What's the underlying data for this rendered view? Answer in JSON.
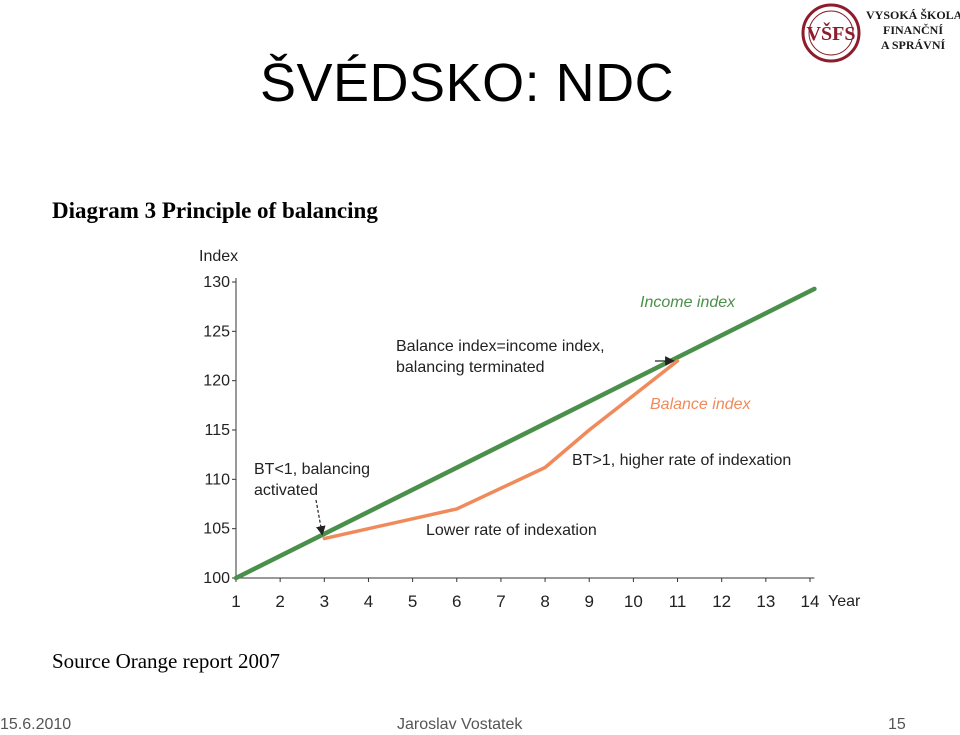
{
  "slide": {
    "title": "ŠVÉDSKO: NDC",
    "logo": {
      "lines": [
        "VYSOKÁ ŠKOLA",
        "FINANČNÍ",
        "A SPRÁVNÍ"
      ],
      "brand_color": "#8b1d2c"
    },
    "source": "Source Orange report 2007",
    "footer": {
      "date": "15.6.2010",
      "author": "Jaroslav Vostatek",
      "page": "15"
    }
  },
  "chart_data": {
    "type": "line",
    "title": "Diagram 3 Principle of balancing",
    "ylabel": "Index",
    "xlabel": "Year",
    "x": [
      1,
      2,
      3,
      4,
      5,
      6,
      7,
      8,
      9,
      10,
      11,
      12,
      13,
      14
    ],
    "xlim": [
      1,
      14.1
    ],
    "ylim": [
      100,
      130
    ],
    "yticks": [
      100,
      105,
      110,
      115,
      120,
      125,
      130
    ],
    "series": [
      {
        "name": "Income index",
        "color": "#4a8f4a",
        "points": [
          [
            1,
            100
          ],
          [
            14.1,
            129.3
          ]
        ]
      },
      {
        "name": "Balance index",
        "color": "#f08a5a",
        "points": [
          [
            3,
            104
          ],
          [
            6,
            107
          ],
          [
            8,
            111.2
          ],
          [
            9,
            115
          ],
          [
            10,
            118.5
          ],
          [
            11,
            122
          ]
        ]
      }
    ],
    "annotations": [
      {
        "text": "Balance index=income index,",
        "text2": "balancing terminated",
        "color": "#222222"
      },
      {
        "text": "BT<1, balancing",
        "text2": "activated",
        "color": "#222222"
      },
      {
        "text": "BT>1, higher rate of indexation",
        "color": "#222222"
      },
      {
        "text": "Lower rate of indexation",
        "color": "#222222"
      }
    ],
    "grid": false
  }
}
